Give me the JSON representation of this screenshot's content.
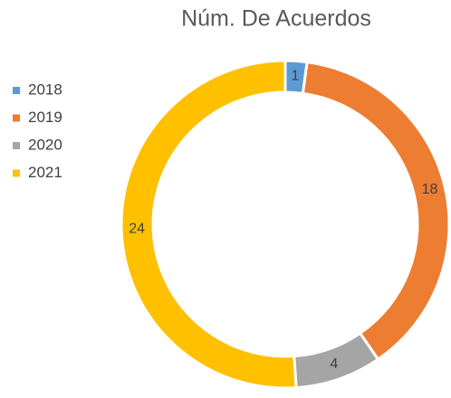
{
  "chart_data": {
    "type": "donut",
    "title": "Núm. De Acuerdos",
    "categories": [
      "2018",
      "2019",
      "2020",
      "2021"
    ],
    "values": [
      1,
      18,
      4,
      24
    ],
    "colors": [
      "#5b9bd5",
      "#ed7d31",
      "#a5a5a5",
      "#ffc000"
    ],
    "legend": "left"
  }
}
